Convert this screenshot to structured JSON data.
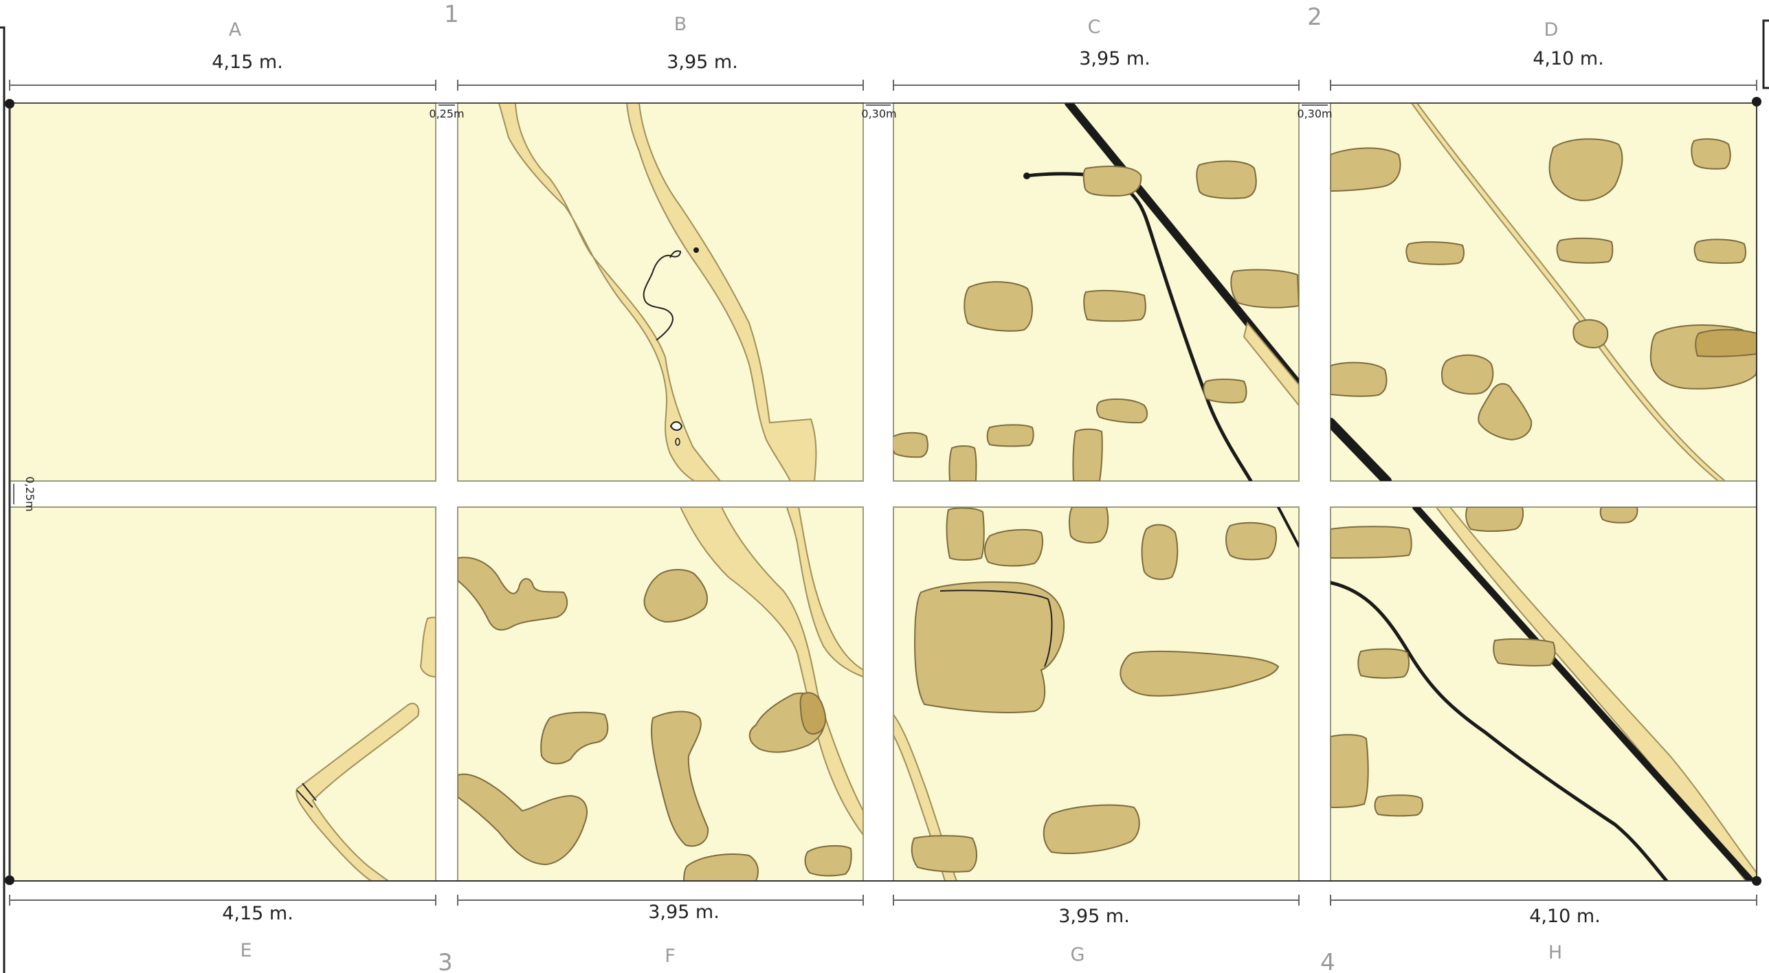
{
  "sectors": {
    "top": [
      {
        "letter": "A",
        "dim": "4,15 m."
      },
      {
        "letter": "B",
        "dim": "3,95 m."
      },
      {
        "letter": "C",
        "dim": "3,95 m."
      },
      {
        "letter": "D",
        "dim": "4,10 m."
      }
    ],
    "bottom": [
      {
        "letter": "E",
        "dim": "4,15 m."
      },
      {
        "letter": "F",
        "dim": "3,95 m."
      },
      {
        "letter": "G",
        "dim": "3,95 m."
      },
      {
        "letter": "H",
        "dim": "4,10 m."
      }
    ]
  },
  "points": {
    "p1": "1",
    "p2": "2",
    "p3": "3",
    "p4": "4"
  },
  "gaps": {
    "ab": "0,25m",
    "bc": "0,30m",
    "cd": "0,30m",
    "row": "0,25m"
  },
  "colors": {
    "cell_fill": "#fbf9d3",
    "trench_fill": "#f0df9f",
    "stone_fill": "#d2bd7a",
    "pipe": "#1a1a1a"
  }
}
